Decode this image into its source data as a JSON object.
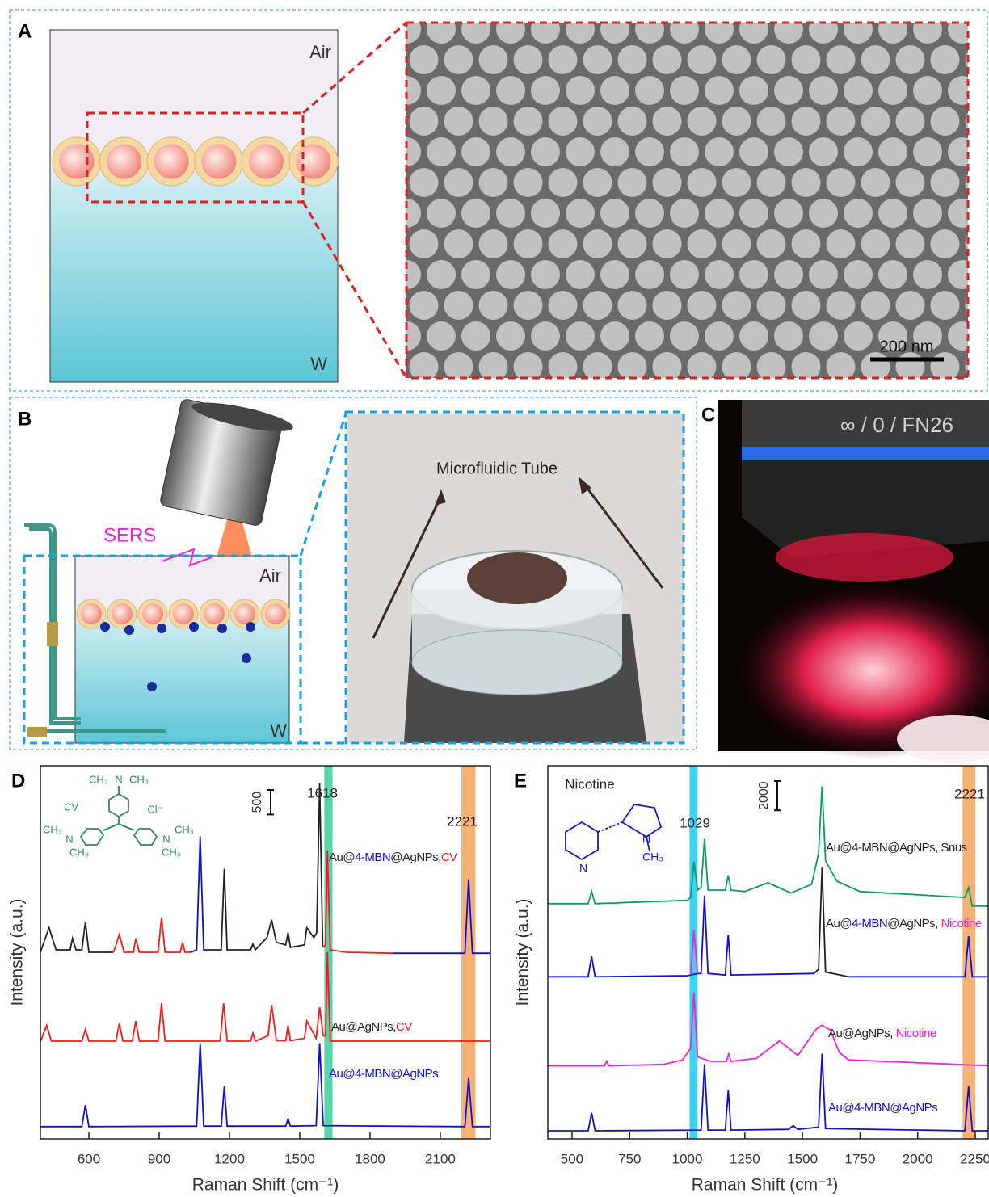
{
  "panel_a": {
    "label": "A",
    "air": "Air",
    "water": "W",
    "scale_bar": "200 nm"
  },
  "panel_b": {
    "label": "B",
    "sers": "SERS",
    "air": "Air",
    "water": "W",
    "tube": "Microfluidic Tube"
  },
  "panel_c": {
    "label": "C",
    "lens_text": "∞ / 0 / FN26"
  },
  "chart_data": [
    {
      "type": "line",
      "panel": "D",
      "x_label": "Raman Shift (cm⁻¹)",
      "y_label": "Intensity (a.u.)",
      "xlim": [
        393,
        2314
      ],
      "ylim": [
        0,
        7600
      ],
      "xticks": [
        600,
        900,
        1200,
        1500,
        1800,
        2100
      ],
      "scale_bar": 500,
      "bands": [
        {
          "range": [
            1605,
            1640
          ],
          "color": "#3ccf9a"
        },
        {
          "range": [
            2190,
            2250
          ],
          "color": "#f7a35c"
        }
      ],
      "annotations": [
        "1618",
        "2221"
      ],
      "labels": [
        {
          "parts": [
            {
              "text": "Au@",
              "color": "#222222"
            },
            {
              "text": "4-MBN",
              "color": "#1010d0"
            },
            {
              "text": "@AgNPs,",
              "color": "#222222"
            },
            {
              "text": "CV",
              "color": "#ee1c1c"
            }
          ]
        },
        {
          "parts": [
            {
              "text": "Au@AgNPs,",
              "color": "#222222"
            },
            {
              "text": "CV",
              "color": "#ee1c1c"
            }
          ]
        },
        {
          "parts": [
            {
              "text": "Au@4-MBN@AgNPs",
              "color": "#1010d0"
            }
          ]
        }
      ],
      "structure_labels": [
        "CH₃",
        "N",
        "CH₃",
        "CV",
        "Cl⁻",
        "CH₃",
        "N",
        "CH₃",
        "N",
        "CH₃",
        "CH₃"
      ],
      "series": [
        {
          "color": "#1010d0",
          "x": [
            393,
            570,
            585,
            600,
            1060,
            1075,
            1090,
            1165,
            1178,
            1190,
            1440,
            1450,
            1460,
            1570,
            1585,
            1600,
            2205,
            2221,
            2237,
            2314
          ],
          "values": [
            250,
            250,
            690,
            250,
            260,
            1950,
            260,
            260,
            1075,
            260,
            260,
            410,
            260,
            270,
            1950,
            270,
            250,
            1240,
            250,
            250
          ]
        },
        {
          "color": "#ee1c1c",
          "x": [
            393,
            420,
            440,
            570,
            585,
            600,
            715,
            730,
            745,
            785,
            800,
            815,
            895,
            910,
            925,
            1160,
            1175,
            1190,
            1290,
            1300,
            1310,
            1365,
            1380,
            1400,
            1440,
            1450,
            1460,
            1520,
            1530,
            1570,
            1585,
            1600,
            1610,
            1618,
            1630,
            2314
          ],
          "values": [
            1980,
            2310,
            1990,
            1990,
            2230,
            1990,
            1990,
            2350,
            1990,
            1990,
            2400,
            1990,
            1990,
            2760,
            1990,
            1990,
            2760,
            1990,
            1990,
            2150,
            1990,
            2100,
            2730,
            2000,
            2000,
            2310,
            2000,
            2050,
            2400,
            2050,
            2680,
            2100,
            2100,
            3800,
            1990,
            1990
          ]
        },
        {
          "color": "#222222",
          "x": [
            393,
            430,
            460,
            520,
            530,
            545,
            570,
            585,
            600,
            705
          ],
          "values": [
            3800,
            4300,
            3850,
            3850,
            4080,
            3850,
            3850,
            4410,
            3800,
            3800
          ]
        },
        {
          "color": "#ee1c1c",
          "x": [
            705,
            730,
            750,
            790,
            800,
            815,
            895,
            910,
            925,
            990,
            1000,
            1010,
            1035
          ],
          "values": [
            3800,
            4160,
            3800,
            3800,
            4080,
            3800,
            3800,
            4510,
            3800,
            3800,
            4000,
            3800,
            3800
          ]
        },
        {
          "color": "#1010d0",
          "x": [
            1035,
            1060,
            1075,
            1090,
            1110
          ],
          "values": [
            3800,
            3850,
            6160,
            3850,
            3850
          ]
        },
        {
          "color": "#222222",
          "x": [
            1110,
            1165,
            1178,
            1190,
            1290,
            1300,
            1310,
            1360,
            1380,
            1400,
            1440,
            1450,
            1460,
            1520,
            1530,
            1560,
            1572,
            1585,
            1598
          ],
          "values": [
            3850,
            3850,
            5500,
            3850,
            3850,
            3965,
            3850,
            4100,
            4460,
            4000,
            3950,
            4200,
            3900,
            3950,
            4300,
            4100,
            4200,
            7240,
            3900
          ]
        },
        {
          "color": "#ee1c1c",
          "x": [
            1598,
            1610,
            1618,
            1630,
            1700,
            1900
          ],
          "values": [
            3900,
            3950,
            5870,
            3850,
            3800,
            3780
          ]
        },
        {
          "color": "#1010d0",
          "x": [
            1900,
            2205,
            2221,
            2237,
            2314
          ],
          "values": [
            3780,
            3780,
            5290,
            3780,
            3780
          ]
        }
      ]
    },
    {
      "type": "line",
      "panel": "E",
      "x_label": "Raman Shift (cm⁻¹)",
      "y_label": "Intensity (a.u.)",
      "xlim": [
        395,
        2306
      ],
      "ylim": [
        0,
        25500
      ],
      "xticks": [
        500,
        750,
        1000,
        1250,
        1500,
        1750,
        2000,
        2250
      ],
      "scale_bar": 2000,
      "bands": [
        {
          "range": [
            1010,
            1045
          ],
          "color": "#1ec8f0"
        },
        {
          "range": [
            2195,
            2250
          ],
          "color": "#f7a35c"
        }
      ],
      "annotations": [
        "Nicotine",
        "1029",
        "2221"
      ],
      "labels": [
        {
          "parts": [
            {
              "text": "Au@4-MBN@AgNPs, Snus",
              "color": "#222222"
            }
          ]
        },
        {
          "parts": [
            {
              "text": "Au@",
              "color": "#222222"
            },
            {
              "text": "4-MBN",
              "color": "#1010d0"
            },
            {
              "text": "@AgNPs, ",
              "color": "#222222"
            },
            {
              "text": "Nicotine",
              "color": "#ee22dd"
            }
          ]
        },
        {
          "parts": [
            {
              "text": "Au@AgNPs, ",
              "color": "#222222"
            },
            {
              "text": "Nicotine",
              "color": "#ee22dd"
            }
          ]
        },
        {
          "parts": [
            {
              "text": "Au@4-MBN@AgNPs",
              "color": "#1010d0"
            }
          ]
        }
      ],
      "structure_labels": [
        "N",
        "N",
        "CH₃"
      ],
      "series": [
        {
          "color": "#1010d0",
          "x": [
            395,
            570,
            585,
            600,
            1060,
            1075,
            1090,
            1165,
            1178,
            1190,
            1440,
            1460,
            1480,
            1570,
            1585,
            1600,
            2205,
            2221,
            2237,
            2306
          ],
          "values": [
            554,
            554,
            1770,
            554,
            600,
            5100,
            600,
            600,
            3320,
            600,
            650,
            900,
            650,
            800,
            5820,
            700,
            554,
            3600,
            554,
            554
          ]
        },
        {
          "color": "#ee22dd",
          "x": [
            395,
            640,
            650,
            660,
            900,
            980,
            1015,
            1029,
            1045,
            1100,
            1170,
            1180,
            1190,
            1300,
            1400,
            1480,
            1560,
            1585,
            1620,
            1660,
            1700,
            2306
          ],
          "values": [
            4990,
            4990,
            5300,
            4990,
            5100,
            5400,
            6200,
            9970,
            5600,
            5300,
            5300,
            5800,
            5300,
            5500,
            6700,
            5700,
            7500,
            7760,
            7450,
            5900,
            5400,
            5000
          ]
        },
        {
          "color": "#1010d0",
          "x": [
            395,
            570,
            585,
            600,
            1000,
            1015,
            1045,
            1060,
            1075,
            1090,
            1165,
            1178,
            1190,
            1550
          ],
          "values": [
            11080,
            11080,
            12470,
            11080,
            11150,
            11200,
            11300,
            11300,
            16620,
            11300,
            11200,
            13960,
            11200,
            11300
          ]
        },
        {
          "color": "#ee22dd",
          "x": [
            1015,
            1029,
            1045
          ],
          "values": [
            11200,
            14240,
            11300
          ]
        },
        {
          "color": "#222222",
          "x": [
            1550,
            1570,
            1585,
            1600,
            1700
          ],
          "values": [
            11300,
            11600,
            18560,
            11400,
            11080
          ]
        },
        {
          "color": "#1010d0",
          "x": [
            1700,
            2205,
            2221,
            2237,
            2306
          ],
          "values": [
            11080,
            11080,
            13850,
            11080,
            11080
          ]
        },
        {
          "color": "#0e9a63",
          "x": [
            395,
            570,
            585,
            600,
            1000,
            1015,
            1029,
            1045,
            1060,
            1075,
            1090,
            1165,
            1178,
            1190,
            1250,
            1350,
            1450,
            1540,
            1570,
            1585,
            1600,
            1650,
            1750,
            2205,
            2221,
            2237,
            2306
          ],
          "values": [
            16070,
            16070,
            16900,
            16070,
            16300,
            16500,
            18950,
            17000,
            17200,
            20500,
            17000,
            17000,
            18000,
            17000,
            16900,
            17500,
            16800,
            17400,
            19500,
            24100,
            19000,
            17600,
            16900,
            16500,
            17170,
            15900,
            15900
          ]
        }
      ]
    }
  ]
}
